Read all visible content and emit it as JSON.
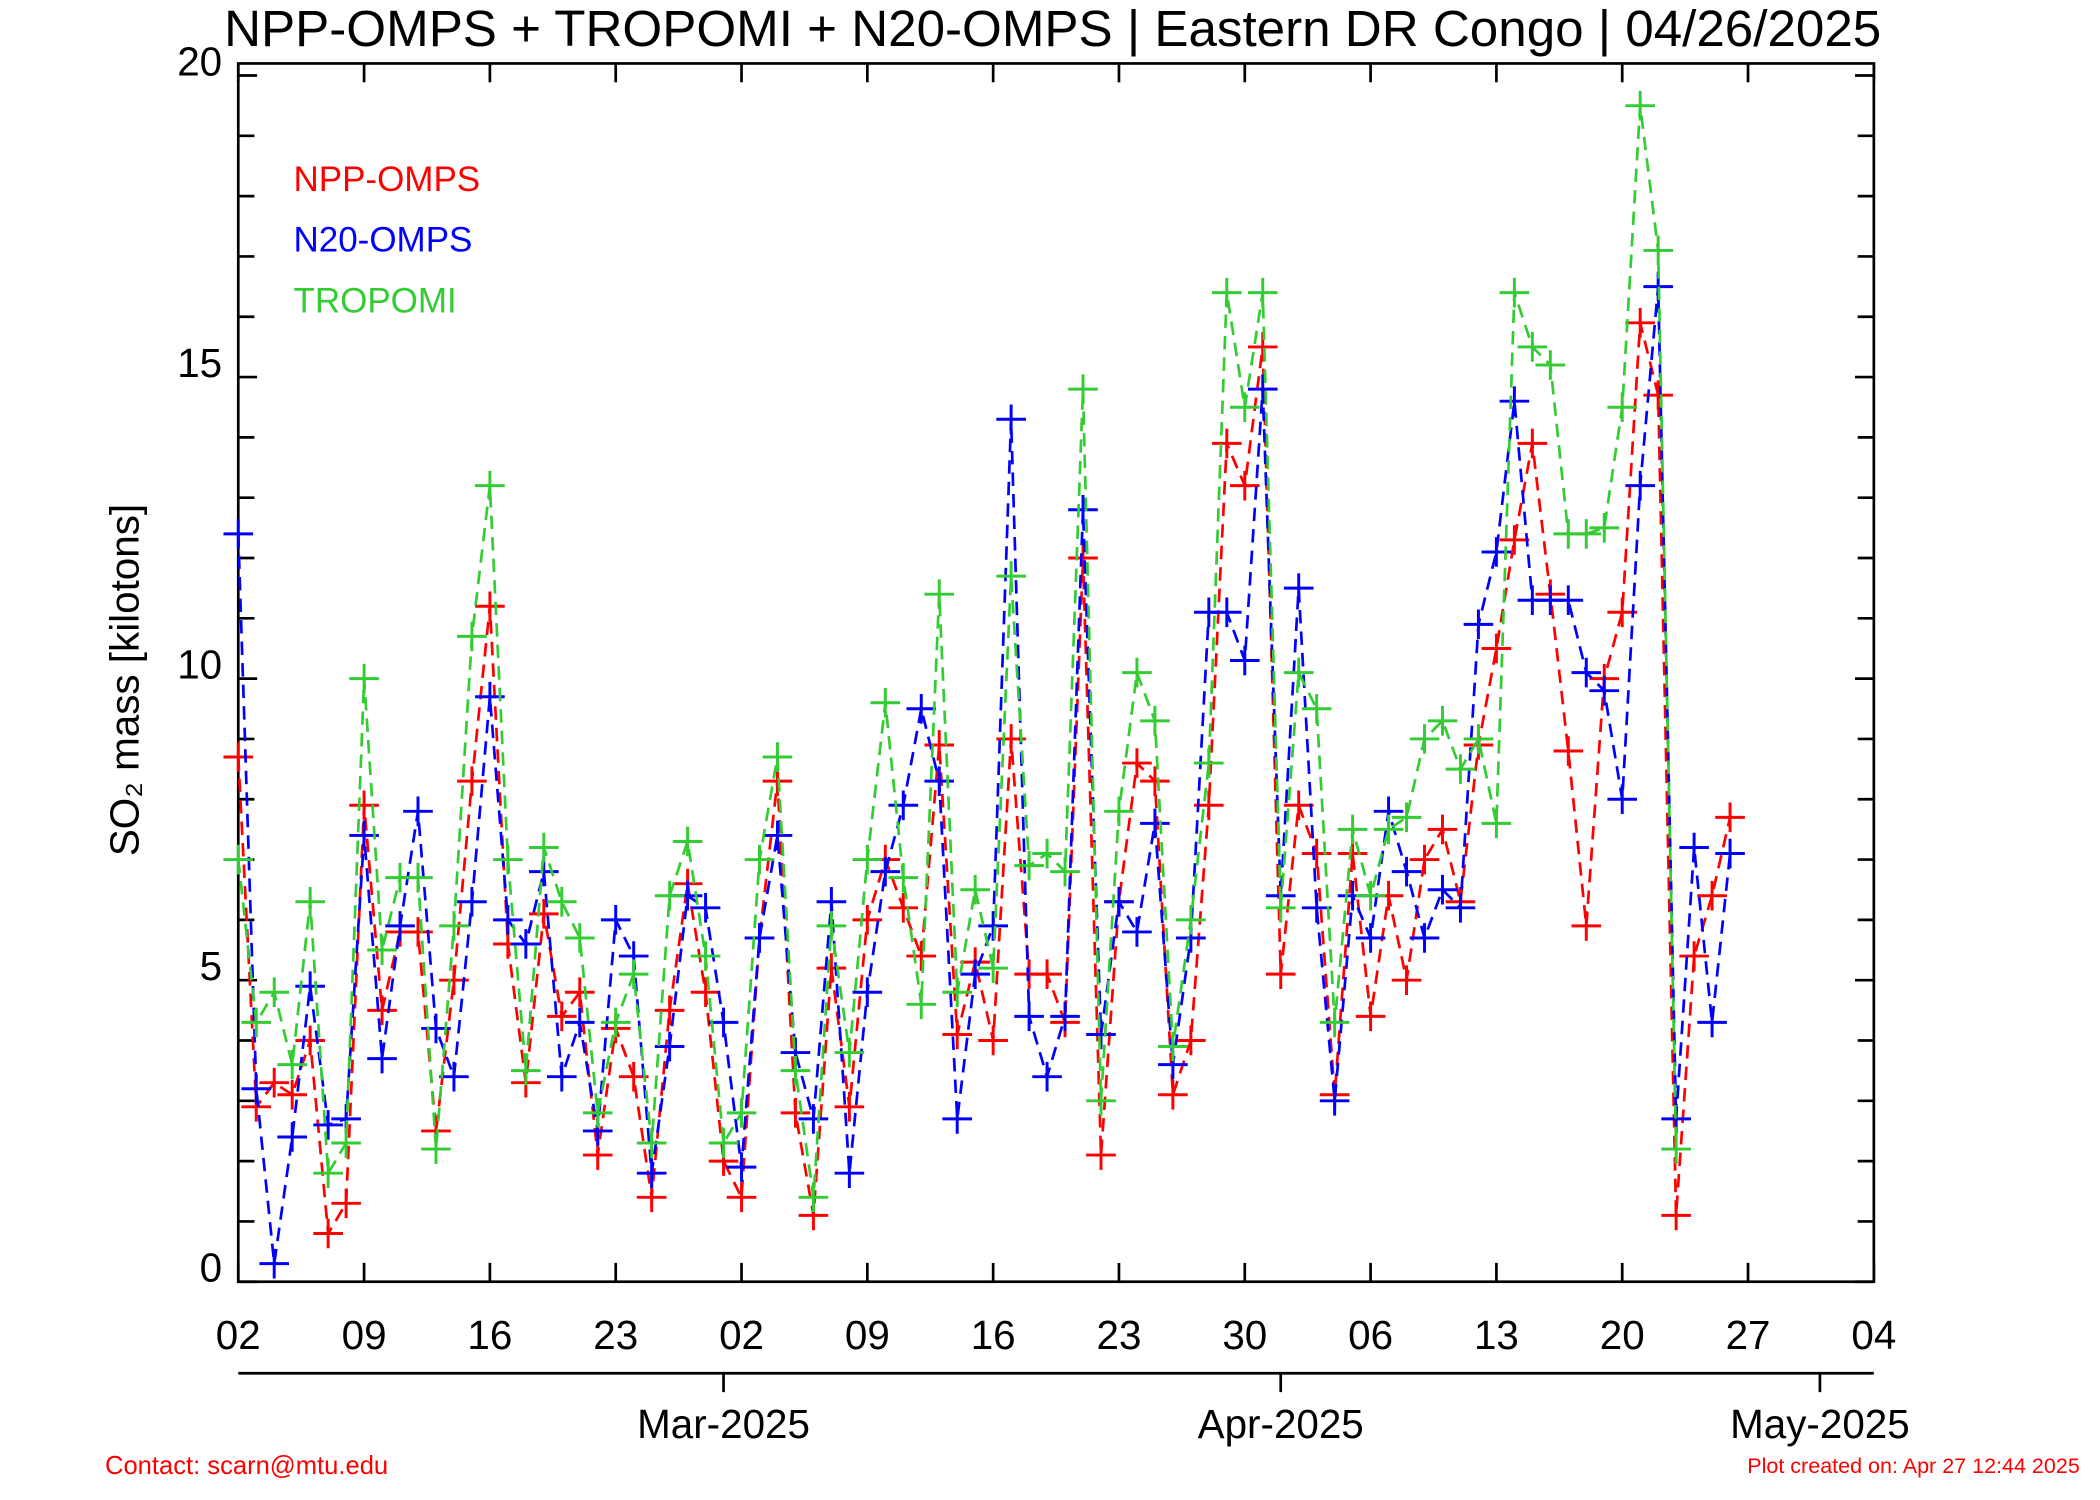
{
  "chart_data": {
    "type": "line",
    "title": "NPP-OMPS + TROPOMI + N20-OMPS | Eastern DR Congo | 04/26/2025",
    "y_label": "SO₂ mass [kilotons]",
    "contact": "Contact: scarn@mtu.edu",
    "created": "Plot created on: Apr 27 12:44 2025",
    "legend": "upper left",
    "x": [
      "2025-02-02",
      "2025-02-03",
      "2025-02-04",
      "2025-02-05",
      "2025-02-06",
      "2025-02-07",
      "2025-02-08",
      "2025-02-09",
      "2025-02-10",
      "2025-02-11",
      "2025-02-12",
      "2025-02-13",
      "2025-02-14",
      "2025-02-15",
      "2025-02-16",
      "2025-02-17",
      "2025-02-18",
      "2025-02-19",
      "2025-02-20",
      "2025-02-21",
      "2025-02-22",
      "2025-02-23",
      "2025-02-24",
      "2025-02-25",
      "2025-02-26",
      "2025-02-27",
      "2025-02-28",
      "2025-03-01",
      "2025-03-02",
      "2025-03-03",
      "2025-03-04",
      "2025-03-05",
      "2025-03-06",
      "2025-03-07",
      "2025-03-08",
      "2025-03-09",
      "2025-03-10",
      "2025-03-11",
      "2025-03-12",
      "2025-03-13",
      "2025-03-14",
      "2025-03-15",
      "2025-03-16",
      "2025-03-17",
      "2025-03-18",
      "2025-03-19",
      "2025-03-20",
      "2025-03-21",
      "2025-03-22",
      "2025-03-23",
      "2025-03-24",
      "2025-03-25",
      "2025-03-26",
      "2025-03-27",
      "2025-03-28",
      "2025-03-29",
      "2025-03-30",
      "2025-03-31",
      "2025-04-01",
      "2025-04-02",
      "2025-04-03",
      "2025-04-04",
      "2025-04-05",
      "2025-04-06",
      "2025-04-07",
      "2025-04-08",
      "2025-04-09",
      "2025-04-10",
      "2025-04-11",
      "2025-04-12",
      "2025-04-13",
      "2025-04-14",
      "2025-04-15",
      "2025-04-16",
      "2025-04-17",
      "2025-04-18",
      "2025-04-19",
      "2025-04-20",
      "2025-04-21",
      "2025-04-22",
      "2025-04-23",
      "2025-04-24",
      "2025-04-25",
      "2025-04-26"
    ],
    "series": [
      {
        "name": "NPP-OMPS",
        "color": "#ff0000",
        "values": [
          8.7,
          2.9,
          3.3,
          3.1,
          4.0,
          0.8,
          1.3,
          7.9,
          4.5,
          5.8,
          5.8,
          2.5,
          5.0,
          8.3,
          11.2,
          5.6,
          3.3,
          6.1,
          4.4,
          4.8,
          2.1,
          4.2,
          3.4,
          1.4,
          4.5,
          6.6,
          4.8,
          2.0,
          1.4,
          5.7,
          8.3,
          2.8,
          1.1,
          5.2,
          2.9,
          6.0,
          7.0,
          6.2,
          5.4,
          8.9,
          4.1,
          5.3,
          4.0,
          9.0,
          5.1,
          5.1,
          4.3,
          12.0,
          2.1,
          6.3,
          8.6,
          8.3,
          3.1,
          4.0,
          7.9,
          13.9,
          13.2,
          15.5,
          5.1,
          7.9,
          7.1,
          3.1,
          7.1,
          4.4,
          6.4,
          5.0,
          7.0,
          7.5,
          6.3,
          8.9,
          10.5,
          12.3,
          13.9,
          11.4,
          8.8,
          5.9,
          10.0,
          11.1,
          15.9,
          14.7,
          1.1,
          5.4,
          6.4,
          7.7
        ]
      },
      {
        "name": "N20-OMPS",
        "color": "#0000ff",
        "values": [
          12.4,
          3.2,
          0.3,
          2.4,
          4.9,
          2.6,
          2.7,
          7.4,
          3.7,
          5.9,
          7.8,
          4.2,
          3.4,
          6.3,
          9.7,
          6.0,
          5.6,
          6.8,
          3.4,
          4.3,
          2.5,
          6.0,
          5.4,
          1.8,
          3.9,
          6.4,
          6.2,
          4.3,
          1.9,
          5.7,
          7.4,
          3.8,
          2.7,
          6.3,
          1.8,
          4.8,
          6.8,
          7.9,
          9.5,
          8.3,
          2.7,
          5.1,
          5.9,
          14.3,
          4.4,
          3.4,
          4.4,
          12.8,
          4.1,
          6.3,
          5.8,
          7.6,
          3.6,
          5.7,
          11.1,
          11.1,
          10.3,
          14.8,
          6.4,
          11.5,
          6.2,
          3.0,
          6.4,
          5.7,
          7.8,
          6.8,
          5.7,
          6.5,
          6.2,
          10.9,
          12.1,
          14.6,
          11.3,
          11.3,
          11.3,
          10.1,
          9.8,
          8.0,
          13.2,
          16.5,
          2.7,
          7.2,
          4.3,
          7.1
        ]
      },
      {
        "name": "TROPOMI",
        "color": "#33cc33",
        "values": [
          7.0,
          4.3,
          4.8,
          3.6,
          6.3,
          1.8,
          2.3,
          10.0,
          5.5,
          6.7,
          6.7,
          2.2,
          5.9,
          10.7,
          13.2,
          7.0,
          3.5,
          7.2,
          6.3,
          5.7,
          2.8,
          4.3,
          5.1,
          2.3,
          6.4,
          7.3,
          5.4,
          2.3,
          2.8,
          7.0,
          8.7,
          3.5,
          1.4,
          5.9,
          3.8,
          7.0,
          9.6,
          6.7,
          4.6,
          11.4,
          4.8,
          6.5,
          5.2,
          11.7,
          6.9,
          7.1,
          6.8,
          14.8,
          3.0,
          7.8,
          10.1,
          9.3,
          3.9,
          6.0,
          8.6,
          16.4,
          14.5,
          16.4,
          6.2,
          10.1,
          9.5,
          4.3,
          7.5,
          6.4,
          7.5,
          7.7,
          9.0,
          9.3,
          8.5,
          9.0,
          7.6,
          16.4,
          15.5,
          15.2,
          12.4,
          12.4,
          12.5,
          14.5,
          19.5,
          17.1,
          2.2,
          null,
          null,
          null
        ]
      }
    ],
    "xlim": [
      "2025-02-02",
      "2025-05-04"
    ],
    "xticks": [
      {
        "value": "2025-02-02",
        "label": "02"
      },
      {
        "value": "2025-02-09",
        "label": "09"
      },
      {
        "value": "2025-02-16",
        "label": "16"
      },
      {
        "value": "2025-02-23",
        "label": "23"
      },
      {
        "value": "2025-03-02",
        "label": "02"
      },
      {
        "value": "2025-03-09",
        "label": "09"
      },
      {
        "value": "2025-03-16",
        "label": "16"
      },
      {
        "value": "2025-03-23",
        "label": "23"
      },
      {
        "value": "2025-03-30",
        "label": "30"
      },
      {
        "value": "2025-04-06",
        "label": "06"
      },
      {
        "value": "2025-04-13",
        "label": "13"
      },
      {
        "value": "2025-04-20",
        "label": "20"
      },
      {
        "value": "2025-04-27",
        "label": "27"
      },
      {
        "value": "2025-05-04",
        "label": "04"
      }
    ],
    "month_ticks": [
      {
        "value": "2025-03-01",
        "label": "Mar-2025"
      },
      {
        "value": "2025-04-01",
        "label": "Apr-2025"
      },
      {
        "value": "2025-05-01",
        "label": "May-2025"
      }
    ],
    "ylim": [
      0,
      20.2
    ],
    "yticks": [
      0,
      5,
      10,
      15,
      20
    ],
    "y_minor_ticks": [
      1,
      2,
      3,
      4,
      6,
      7,
      8,
      9,
      11,
      12,
      13,
      14,
      16,
      17,
      18,
      19
    ]
  }
}
